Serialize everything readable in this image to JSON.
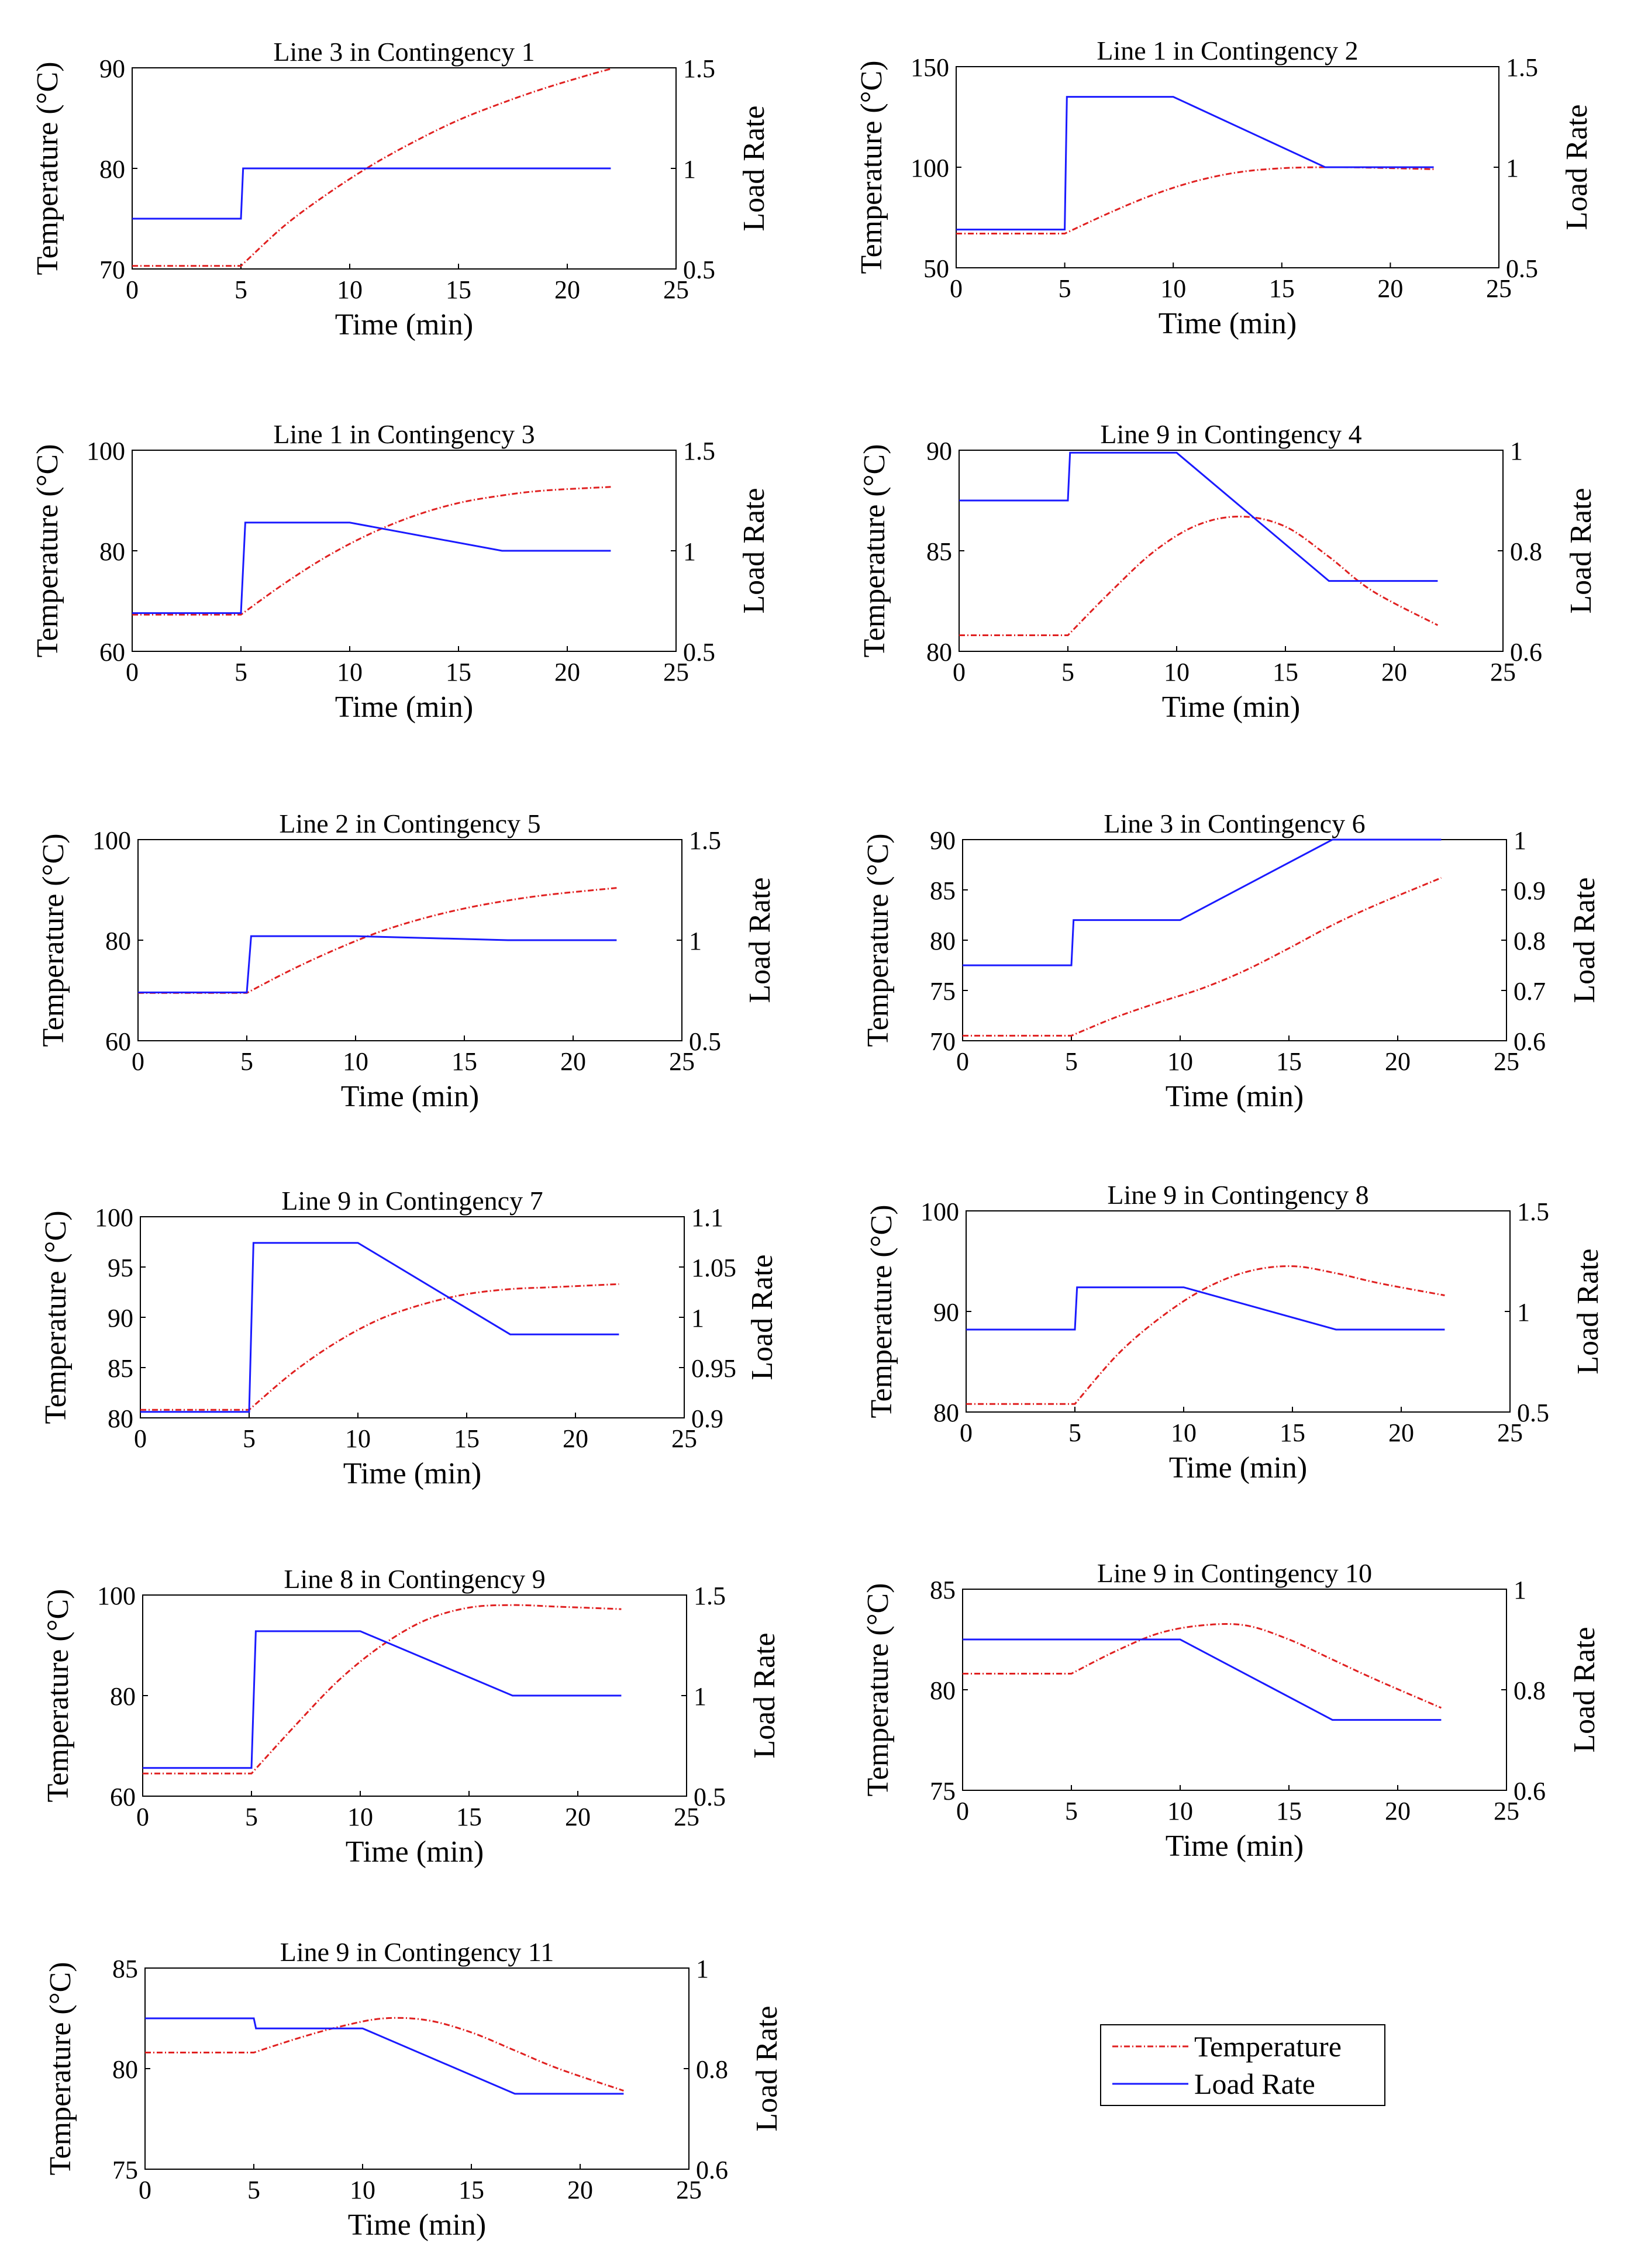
{
  "colors": {
    "temperature": "#e02020",
    "load_rate": "#1a1aff",
    "axis": "#000000",
    "background": "#ffffff"
  },
  "legend": {
    "temperature_label": "Temperature",
    "load_rate_label": "Load Rate",
    "placement": "bottom-right"
  },
  "chart_data": [
    {
      "type": "line",
      "title": "Line 3 in Contingency 1",
      "xlabel": "Time (min)",
      "ylabel": "Temperature (°C)",
      "y2label": "Load Rate",
      "xlim": [
        0,
        25
      ],
      "xticks": [
        0,
        5,
        10,
        15,
        20,
        25
      ],
      "ylim": [
        70,
        90
      ],
      "yticks": [
        70,
        80,
        90
      ],
      "y2lim": [
        0.5,
        1.5
      ],
      "y2ticks": [
        0.5,
        1,
        1.5
      ],
      "series": [
        {
          "name": "Temperature",
          "axis": "left",
          "x": [
            0,
            5,
            7,
            9,
            11,
            13,
            15,
            17,
            19,
            21,
            22
          ],
          "values": [
            70.3,
            70.3,
            74.3,
            77.5,
            80.3,
            82.7,
            84.8,
            86.5,
            88,
            89.3,
            89.9
          ]
        },
        {
          "name": "Load Rate",
          "axis": "right",
          "x": [
            0,
            5,
            5.1,
            22
          ],
          "values": [
            0.75,
            0.75,
            1.0,
            1.0
          ]
        }
      ]
    },
    {
      "type": "line",
      "title": "Line 1 in Contingency 2",
      "xlabel": "Time (min)",
      "ylabel": "Temperature (°C)",
      "y2label": "Load Rate",
      "xlim": [
        0,
        25
      ],
      "xticks": [
        0,
        5,
        10,
        15,
        20,
        25
      ],
      "ylim": [
        50,
        150
      ],
      "yticks": [
        50,
        100,
        150
      ],
      "y2lim": [
        0.5,
        1.5
      ],
      "y2ticks": [
        0.5,
        1,
        1.5
      ],
      "series": [
        {
          "name": "Temperature",
          "axis": "left",
          "x": [
            0,
            5,
            7,
            9,
            11,
            13,
            15,
            17,
            19,
            22
          ],
          "values": [
            67,
            67,
            77,
            86,
            93,
            97.5,
            99.5,
            100,
            99.8,
            99
          ]
        },
        {
          "name": "Load Rate",
          "axis": "right",
          "x": [
            0,
            5,
            5.1,
            10,
            17,
            22
          ],
          "values": [
            0.69,
            0.69,
            1.35,
            1.35,
            1.0,
            1.0
          ]
        }
      ]
    },
    {
      "type": "line",
      "title": "Line 1 in Contingency 3",
      "xlabel": "Time (min)",
      "ylabel": "Temperature (°C)",
      "y2label": "Load Rate",
      "xlim": [
        0,
        25
      ],
      "xticks": [
        0,
        5,
        10,
        15,
        20,
        25
      ],
      "ylim": [
        60,
        100
      ],
      "yticks": [
        60,
        80,
        100
      ],
      "y2lim": [
        0.5,
        1.5
      ],
      "y2ticks": [
        0.5,
        1,
        1.5
      ],
      "series": [
        {
          "name": "Temperature",
          "axis": "left",
          "x": [
            0,
            5,
            7,
            9,
            11,
            13,
            15,
            17,
            19,
            22
          ],
          "values": [
            67.3,
            67.3,
            73.5,
            79,
            83.5,
            87,
            89.5,
            91,
            92,
            92.7
          ]
        },
        {
          "name": "Load Rate",
          "axis": "right",
          "x": [
            0,
            5,
            5.2,
            10,
            17,
            22
          ],
          "values": [
            0.69,
            0.69,
            1.14,
            1.14,
            1.0,
            1.0
          ]
        }
      ]
    },
    {
      "type": "line",
      "title": "Line 9 in Contingency 4",
      "xlabel": "Time (min)",
      "ylabel": "Temperature (°C)",
      "y2label": "Load Rate",
      "xlim": [
        0,
        25
      ],
      "xticks": [
        0,
        5,
        10,
        15,
        20,
        25
      ],
      "ylim": [
        80,
        90
      ],
      "yticks": [
        80,
        85,
        90
      ],
      "y2lim": [
        0.6,
        1
      ],
      "y2ticks": [
        0.6,
        0.8,
        1
      ],
      "series": [
        {
          "name": "Temperature",
          "axis": "left",
          "x": [
            0,
            5,
            7,
            9,
            11,
            13,
            15,
            17,
            19,
            22
          ],
          "values": [
            80.8,
            80.8,
            83,
            85,
            86.3,
            86.7,
            86.2,
            84.7,
            83,
            81.3
          ]
        },
        {
          "name": "Load Rate",
          "axis": "right",
          "x": [
            0,
            5,
            5.1,
            10,
            17,
            22
          ],
          "values": [
            0.9,
            0.9,
            0.995,
            0.995,
            0.74,
            0.74
          ]
        }
      ]
    },
    {
      "type": "line",
      "title": "Line 2 in Contingency 5",
      "xlabel": "Time (min)",
      "ylabel": "Temperature (°C)",
      "y2label": "Load Rate",
      "xlim": [
        0,
        25
      ],
      "xticks": [
        0,
        5,
        10,
        15,
        20,
        25
      ],
      "ylim": [
        60,
        100
      ],
      "yticks": [
        60,
        80,
        100
      ],
      "y2lim": [
        0.5,
        1.5
      ],
      "y2ticks": [
        0.5,
        1,
        1.5
      ],
      "series": [
        {
          "name": "Temperature",
          "axis": "left",
          "x": [
            0,
            5,
            7,
            9,
            11,
            13,
            15,
            17,
            19,
            22
          ],
          "values": [
            69.5,
            69.5,
            74,
            78,
            81.5,
            84.2,
            86.3,
            87.9,
            89.1,
            90.4
          ]
        },
        {
          "name": "Load Rate",
          "axis": "right",
          "x": [
            0,
            5,
            5.2,
            10,
            17,
            22
          ],
          "values": [
            0.74,
            0.74,
            1.02,
            1.02,
            1.0,
            1.0
          ]
        }
      ]
    },
    {
      "type": "line",
      "title": "Line 3 in Contingency 6",
      "xlabel": "Time (min)",
      "ylabel": "Temperature (°C)",
      "y2label": "Load Rate",
      "xlim": [
        0,
        25
      ],
      "xticks": [
        0,
        5,
        10,
        15,
        20,
        25
      ],
      "ylim": [
        70,
        90
      ],
      "yticks": [
        70,
        75,
        80,
        85,
        90
      ],
      "y2lim": [
        0.6,
        1
      ],
      "y2ticks": [
        0.6,
        0.7,
        0.8,
        0.9,
        1
      ],
      "series": [
        {
          "name": "Temperature",
          "axis": "left",
          "x": [
            0,
            5,
            7,
            9,
            11,
            13,
            15,
            17,
            19,
            22
          ],
          "values": [
            70.5,
            70.5,
            72.3,
            73.8,
            75.2,
            77,
            79.2,
            81.5,
            83.5,
            86.2
          ]
        },
        {
          "name": "Load Rate",
          "axis": "right",
          "x": [
            0,
            5,
            5.1,
            10,
            17,
            22
          ],
          "values": [
            0.75,
            0.75,
            0.84,
            0.84,
            1.0,
            1.0
          ]
        }
      ]
    },
    {
      "type": "line",
      "title": "Line 9 in Contingency 7",
      "xlabel": "Time (min)",
      "ylabel": "Temperature (°C)",
      "y2label": "Load Rate",
      "xlim": [
        0,
        25
      ],
      "xticks": [
        0,
        5,
        10,
        15,
        20,
        25
      ],
      "ylim": [
        80,
        100
      ],
      "yticks": [
        80,
        85,
        90,
        95,
        100
      ],
      "y2lim": [
        0.9,
        1.1
      ],
      "y2ticks": [
        0.9,
        0.95,
        1,
        1.05,
        1.1
      ],
      "series": [
        {
          "name": "Temperature",
          "axis": "left",
          "x": [
            0,
            5,
            7,
            9,
            11,
            13,
            15,
            17,
            19,
            22
          ],
          "values": [
            80.8,
            80.8,
            84.5,
            87.5,
            89.8,
            91.3,
            92.3,
            92.8,
            93,
            93.3
          ]
        },
        {
          "name": "Load Rate",
          "axis": "right",
          "x": [
            0,
            5,
            5.2,
            10,
            17,
            22
          ],
          "values": [
            0.906,
            0.906,
            1.074,
            1.074,
            0.983,
            0.983
          ]
        }
      ]
    },
    {
      "type": "line",
      "title": "Line 9 in Contingency 8",
      "xlabel": "Time (min)",
      "ylabel": "Temperature (°C)",
      "y2label": "Load Rate",
      "xlim": [
        0,
        25
      ],
      "xticks": [
        0,
        5,
        10,
        15,
        20,
        25
      ],
      "ylim": [
        80,
        100
      ],
      "yticks": [
        80,
        90,
        100
      ],
      "y2lim": [
        0.5,
        1.5
      ],
      "y2ticks": [
        0.5,
        1,
        1.5
      ],
      "series": [
        {
          "name": "Temperature",
          "axis": "left",
          "x": [
            0,
            5,
            7,
            9,
            11,
            13,
            15,
            17,
            19,
            22
          ],
          "values": [
            80.8,
            80.8,
            85.8,
            89.5,
            92.3,
            94,
            94.5,
            93.8,
            92.8,
            91.6
          ]
        },
        {
          "name": "Load Rate",
          "axis": "right",
          "x": [
            0,
            5,
            5.1,
            10,
            17,
            22
          ],
          "values": [
            0.91,
            0.91,
            1.12,
            1.12,
            0.91,
            0.91
          ]
        }
      ]
    },
    {
      "type": "line",
      "title": "Line 8 in Contingency 9",
      "xlabel": "Time (min)",
      "ylabel": "Temperature (°C)",
      "y2label": "Load Rate",
      "xlim": [
        0,
        25
      ],
      "xticks": [
        0,
        5,
        10,
        15,
        20,
        25
      ],
      "ylim": [
        60,
        100
      ],
      "yticks": [
        60,
        80,
        100
      ],
      "y2lim": [
        0.5,
        1.5
      ],
      "y2ticks": [
        0.5,
        1,
        1.5
      ],
      "series": [
        {
          "name": "Temperature",
          "axis": "left",
          "x": [
            0,
            5,
            7,
            9,
            11,
            13,
            15,
            17,
            19,
            22
          ],
          "values": [
            64.5,
            64.5,
            74,
            83,
            90,
            95,
            97.5,
            98,
            97.7,
            97.2
          ]
        },
        {
          "name": "Load Rate",
          "axis": "right",
          "x": [
            0,
            5,
            5.2,
            10,
            17,
            22
          ],
          "values": [
            0.64,
            0.64,
            1.32,
            1.32,
            1.0,
            1.0
          ]
        }
      ]
    },
    {
      "type": "line",
      "title": "Line 9 in Contingency 10",
      "xlabel": "Time (min)",
      "ylabel": "Temperature (°C)",
      "y2label": "Load Rate",
      "xlim": [
        0,
        25
      ],
      "xticks": [
        0,
        5,
        10,
        15,
        20,
        25
      ],
      "ylim": [
        75,
        85
      ],
      "yticks": [
        75,
        80,
        85
      ],
      "y2lim": [
        0.6,
        1
      ],
      "y2ticks": [
        0.6,
        0.8,
        1
      ],
      "series": [
        {
          "name": "Temperature",
          "axis": "left",
          "x": [
            0,
            5,
            7,
            9,
            11,
            13,
            15,
            17,
            19,
            22
          ],
          "values": [
            80.8,
            80.8,
            81.9,
            82.8,
            83.2,
            83.2,
            82.5,
            81.5,
            80.5,
            79.1
          ]
        },
        {
          "name": "Load Rate",
          "axis": "right",
          "x": [
            0,
            5,
            10,
            17,
            22
          ],
          "values": [
            0.9,
            0.9,
            0.9,
            0.74,
            0.74
          ]
        }
      ]
    },
    {
      "type": "line",
      "title": "Line 9 in Contingency 11",
      "xlabel": "Time (min)",
      "ylabel": "Temperature (°C)",
      "y2label": "Load Rate",
      "xlim": [
        0,
        25
      ],
      "xticks": [
        0,
        5,
        10,
        15,
        20,
        25
      ],
      "ylim": [
        75,
        85
      ],
      "yticks": [
        75,
        80,
        85
      ],
      "y2lim": [
        0.6,
        1
      ],
      "y2ticks": [
        0.6,
        0.8,
        1
      ],
      "series": [
        {
          "name": "Temperature",
          "axis": "left",
          "x": [
            0,
            5,
            7,
            9,
            11,
            13,
            15,
            17,
            19,
            22
          ],
          "values": [
            80.8,
            80.8,
            81.5,
            82.1,
            82.5,
            82.4,
            81.8,
            80.9,
            80,
            78.9
          ]
        },
        {
          "name": "Load Rate",
          "axis": "right",
          "x": [
            0,
            5,
            5.1,
            10,
            17,
            22
          ],
          "values": [
            0.9,
            0.9,
            0.88,
            0.88,
            0.75,
            0.75
          ]
        }
      ]
    }
  ]
}
